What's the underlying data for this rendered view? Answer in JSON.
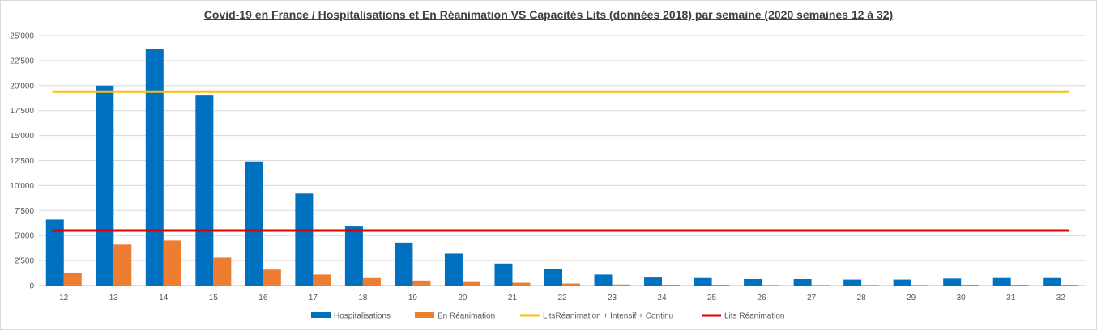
{
  "chart_data": {
    "type": "bar",
    "title": "Covid-19 en France / Hospitalisations et En Réanimation VS Capacités Lits (données 2018) par semaine (2020 semaines 12 à 32)",
    "categories": [
      "12",
      "13",
      "14",
      "15",
      "16",
      "17",
      "18",
      "19",
      "20",
      "21",
      "22",
      "23",
      "24",
      "25",
      "26",
      "27",
      "28",
      "29",
      "30",
      "31",
      "32"
    ],
    "ylim": [
      0,
      25000
    ],
    "yticks": [
      0,
      2500,
      5000,
      7500,
      10000,
      12500,
      15000,
      17500,
      20000,
      22500,
      25000
    ],
    "ytick_labels": [
      "0",
      "2'500",
      "5'000",
      "7'500",
      "10'000",
      "12'500",
      "15'000",
      "17'500",
      "20'000",
      "22'500",
      "25'000"
    ],
    "grid": true,
    "legend_position": "bottom",
    "series": [
      {
        "name": "Hospitalisations",
        "kind": "bar",
        "color": "#0070c0",
        "values": [
          6600,
          20000,
          23700,
          19000,
          12400,
          9200,
          5900,
          4300,
          3200,
          2200,
          1700,
          1100,
          800,
          750,
          650,
          650,
          600,
          600,
          700,
          750,
          750
        ]
      },
      {
        "name": "En Réanimation",
        "kind": "bar",
        "color": "#ed7d31",
        "values": [
          1300,
          4100,
          4500,
          2800,
          1600,
          1100,
          750,
          500,
          350,
          280,
          200,
          100,
          80,
          80,
          60,
          60,
          60,
          60,
          80,
          80,
          80
        ]
      },
      {
        "name": "LitsRéanimation + Intensif + Continu",
        "kind": "line",
        "color": "#ffc000",
        "values": [
          19400,
          19400,
          19400,
          19400,
          19400,
          19400,
          19400,
          19400,
          19400,
          19400,
          19400,
          19400,
          19400,
          19400,
          19400,
          19400,
          19400,
          19400,
          19400,
          19400,
          19400
        ]
      },
      {
        "name": "Lits Réanimation",
        "kind": "line",
        "color": "#e00000",
        "values": [
          5500,
          5500,
          5500,
          5500,
          5500,
          5500,
          5500,
          5500,
          5500,
          5500,
          5500,
          5500,
          5500,
          5500,
          5500,
          5500,
          5500,
          5500,
          5500,
          5500,
          5500
        ]
      }
    ]
  }
}
